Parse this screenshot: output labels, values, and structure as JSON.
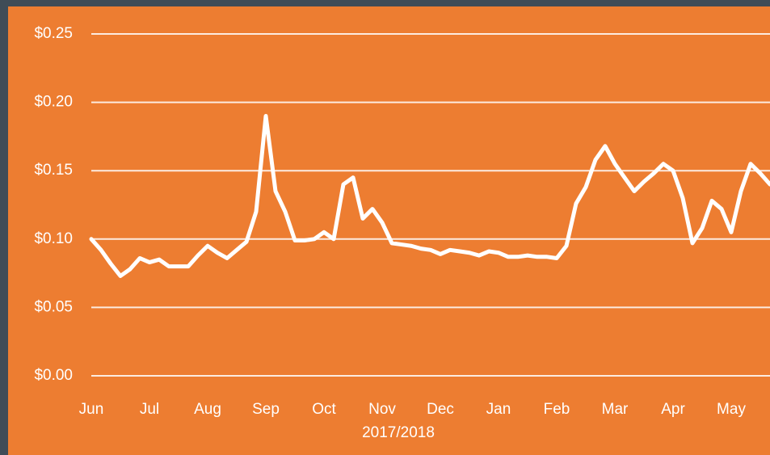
{
  "chart_data": {
    "type": "line",
    "x_label": "2017/2018",
    "categories": [
      "Jun",
      null,
      null,
      null,
      null,
      null,
      "Jul",
      null,
      null,
      null,
      null,
      null,
      "Aug",
      null,
      null,
      null,
      null,
      null,
      "Sep",
      null,
      null,
      null,
      null,
      null,
      "Oct",
      null,
      null,
      null,
      null,
      null,
      "Nov",
      null,
      null,
      null,
      null,
      null,
      "Dec",
      null,
      null,
      null,
      null,
      null,
      "Jan",
      null,
      null,
      null,
      null,
      null,
      "Feb",
      null,
      null,
      null,
      null,
      null,
      "Mar",
      null,
      null,
      null,
      null,
      null,
      "Apr",
      null,
      null,
      null,
      null,
      null,
      "May",
      null,
      null,
      null,
      null
    ],
    "series": [
      {
        "color": "#ffffff",
        "values": [
          0.1,
          0.092,
          0.082,
          0.073,
          0.078,
          0.086,
          0.083,
          0.085,
          0.08,
          0.08,
          0.08,
          0.088,
          0.095,
          0.09,
          0.086,
          0.092,
          0.098,
          0.12,
          0.19,
          0.135,
          0.12,
          0.099,
          0.099,
          0.1,
          0.105,
          0.1,
          0.14,
          0.145,
          0.115,
          0.122,
          0.112,
          0.097,
          0.096,
          0.095,
          0.093,
          0.092,
          0.089,
          0.092,
          0.091,
          0.09,
          0.088,
          0.091,
          0.09,
          0.087,
          0.087,
          0.088,
          0.087,
          0.087,
          0.086,
          0.095,
          0.126,
          0.138,
          0.158,
          0.168,
          0.155,
          0.145,
          0.135,
          0.142,
          0.148,
          0.155,
          0.15,
          0.13,
          0.097,
          0.108,
          0.128,
          0.122,
          0.105,
          0.135,
          0.155,
          0.148,
          0.14
        ]
      }
    ],
    "ylim": [
      0,
      0.25
    ],
    "yticks": [
      {
        "value": 0,
        "label": "$0.00"
      },
      {
        "value": 0.05,
        "label": "$0.05"
      },
      {
        "value": 0.1,
        "label": "$0.10"
      },
      {
        "value": 0.15,
        "label": "$0.15"
      },
      {
        "value": 0.2,
        "label": "$0.20"
      },
      {
        "value": 0.25,
        "label": "$0.25"
      }
    ],
    "grid": true
  }
}
